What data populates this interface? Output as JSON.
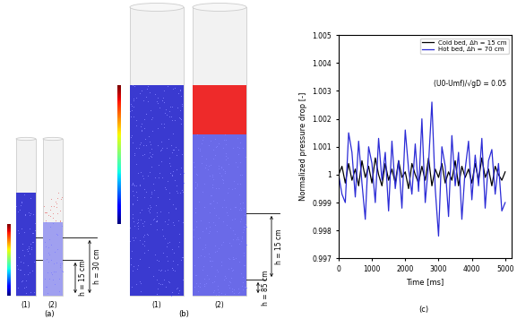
{
  "panels": {
    "a": {
      "label": "(a)",
      "columns": [
        "(1)",
        "(2)"
      ],
      "heights": [
        "h = 30 cm",
        "h = 15 cm"
      ]
    },
    "b": {
      "label": "(b)",
      "columns": [
        "(1)",
        "(2)"
      ],
      "heights": [
        "h = 15 cm",
        "h = 85 cm"
      ]
    },
    "c": {
      "label": "(c)"
    }
  },
  "chart_data": {
    "type": "line",
    "x_label": "Time [ms]",
    "y_label": "Normalized pressure drop [-]",
    "annotation": "(U0-Umf)/√gD = 0.05",
    "x": [
      0,
      100,
      200,
      300,
      400,
      500,
      600,
      700,
      800,
      900,
      1000,
      1100,
      1200,
      1300,
      1400,
      1500,
      1600,
      1700,
      1800,
      1900,
      2000,
      2100,
      2200,
      2300,
      2400,
      2500,
      2600,
      2700,
      2800,
      2900,
      3000,
      3100,
      3200,
      3300,
      3400,
      3500,
      3600,
      3700,
      3800,
      3900,
      4000,
      4100,
      4200,
      4300,
      4400,
      4500,
      4600,
      4700,
      4800,
      4900,
      5000
    ],
    "series": [
      {
        "name": "Cold bed, Δh = 15 cm",
        "color": "#000000",
        "values": [
          1.0,
          1.0003,
          0.9997,
          1.0004,
          0.9998,
          1.0002,
          0.9996,
          1.0005,
          0.9999,
          1.0003,
          0.9997,
          1.0006,
          1.0,
          0.9996,
          1.0004,
          0.9998,
          1.0002,
          0.9997,
          1.0005,
          0.9999,
          1.0001,
          0.9995,
          1.0004,
          1.0,
          0.9997,
          1.0003,
          0.9998,
          1.0006,
          0.9996,
          1.0002,
          0.9999,
          1.0004,
          0.9997,
          1.0001,
          0.9998,
          1.0005,
          0.9996,
          1.0003,
          0.9999,
          1.0002,
          0.9997,
          1.0004,
          0.9998,
          1.0006,
          0.9999,
          1.0002,
          0.9996,
          1.0003,
          1.0,
          0.9998,
          1.0001
        ]
      },
      {
        "name": "Hot bed, Δh = 70 cm",
        "color": "#2b2bd6",
        "values": [
          1.0,
          0.9993,
          0.999,
          1.0015,
          1.0008,
          0.9992,
          1.0012,
          0.9997,
          0.9984,
          1.001,
          1.0004,
          0.999,
          1.0013,
          0.9998,
          1.0008,
          0.9987,
          1.0012,
          0.9995,
          1.0005,
          0.9988,
          1.0016,
          1.0002,
          0.9993,
          1.0011,
          0.9994,
          1.002,
          0.999,
          1.0004,
          1.0026,
          0.9995,
          0.9978,
          1.001,
          1.0003,
          0.9985,
          1.0014,
          0.9996,
          1.0008,
          0.9984,
          1.0002,
          1.0012,
          0.9991,
          1.0007,
          0.9996,
          1.0013,
          0.9988,
          1.0005,
          1.0009,
          0.9993,
          1.0004,
          0.9987,
          0.999
        ]
      }
    ],
    "xlim": [
      0,
      5200
    ],
    "xticks": [
      0,
      1000,
      2000,
      3000,
      4000,
      5000
    ],
    "ylim": [
      0.997,
      1.005
    ],
    "yticks": [
      0.997,
      0.998,
      0.999,
      1,
      1.001,
      1.002,
      1.003,
      1.004,
      1.005
    ],
    "legend": "upper right",
    "grid": false
  }
}
